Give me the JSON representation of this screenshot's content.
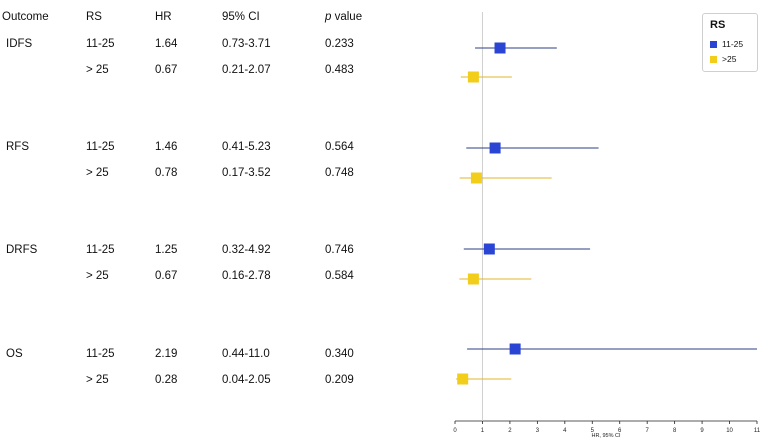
{
  "table": {
    "headers": {
      "outcome": "Outcome",
      "rs": "RS",
      "hr": "HR",
      "ci": "95% CI",
      "p_italic": "p",
      "p_rest": " value"
    },
    "groups": [
      {
        "outcome": "IDFS",
        "rows": [
          {
            "rs": "11-25",
            "hr": "1.64",
            "ci": "0.73-3.71",
            "p": "0.233"
          },
          {
            "rs": "> 25",
            "hr": "0.67",
            "ci": "0.21-2.07",
            "p": "0.483"
          }
        ]
      },
      {
        "outcome": "RFS",
        "rows": [
          {
            "rs": "11-25",
            "hr": "1.46",
            "ci": "0.41-5.23",
            "p": "0.564"
          },
          {
            "rs": "> 25",
            "hr": "0.78",
            "ci": "0.17-3.52",
            "p": "0.748"
          }
        ]
      },
      {
        "outcome": "DRFS",
        "rows": [
          {
            "rs": "11-25",
            "hr": "1.25",
            "ci": "0.32-4.92",
            "p": "0.746"
          },
          {
            "rs": "> 25",
            "hr": "0.67",
            "ci": "0.16-2.78",
            "p": "0.584"
          }
        ]
      },
      {
        "outcome": "OS",
        "rows": [
          {
            "rs": "11-25",
            "hr": "2.19",
            "ci": "0.44-11.0",
            "p": "0.340"
          },
          {
            "rs": "> 25",
            "hr": "0.28",
            "ci": "0.04-2.05",
            "p": "0.209"
          }
        ]
      }
    ]
  },
  "legend": {
    "title": "RS",
    "items": [
      {
        "label": "11-25",
        "color": "#2a44d4"
      },
      {
        "label": ">25",
        "color": "#f2cd19"
      }
    ]
  },
  "chart_data": {
    "type": "forest",
    "xlabel": "HR, 95% CI",
    "xlim": [
      0,
      11
    ],
    "xticks": [
      "0",
      "1",
      "2",
      "3",
      "4",
      "5",
      "6",
      "7",
      "8",
      "9",
      "10",
      "11"
    ],
    "reference_line": 1,
    "series": [
      {
        "name": "11-25",
        "color": "#2a44d4",
        "line_color": "#2e3f86",
        "points": [
          {
            "outcome": "IDFS",
            "hr": 1.64,
            "lo": 0.73,
            "hi": 3.71
          },
          {
            "outcome": "RFS",
            "hr": 1.46,
            "lo": 0.41,
            "hi": 5.23
          },
          {
            "outcome": "DRFS",
            "hr": 1.25,
            "lo": 0.32,
            "hi": 4.92
          },
          {
            "outcome": "OS",
            "hr": 2.19,
            "lo": 0.44,
            "hi": 11.0
          }
        ]
      },
      {
        "name": ">25",
        "color": "#f2cd19",
        "line_color": "#e2b52a",
        "points": [
          {
            "outcome": "IDFS",
            "hr": 0.67,
            "lo": 0.21,
            "hi": 2.07
          },
          {
            "outcome": "RFS",
            "hr": 0.78,
            "lo": 0.17,
            "hi": 3.52
          },
          {
            "outcome": "DRFS",
            "hr": 0.67,
            "lo": 0.16,
            "hi": 2.78
          },
          {
            "outcome": "OS",
            "hr": 0.28,
            "lo": 0.04,
            "hi": 2.05
          }
        ]
      }
    ]
  }
}
